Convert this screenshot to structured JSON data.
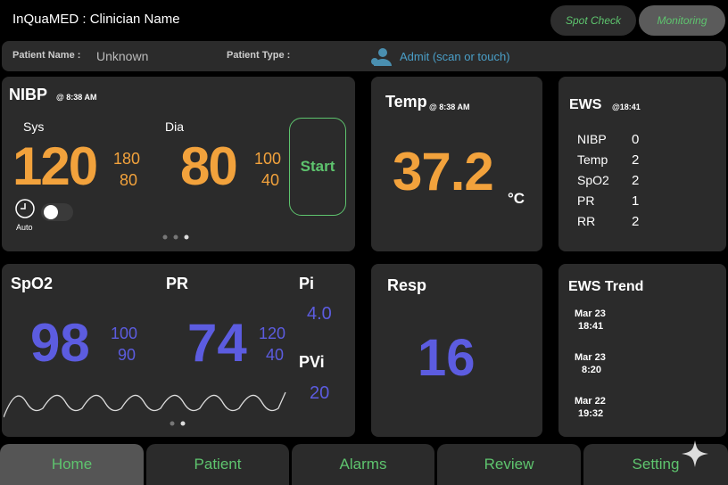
{
  "header": {
    "app": "InQuaMED : Clinician Name",
    "modes": [
      "Spot Check",
      "Monitoring"
    ]
  },
  "patient_bar": {
    "name_label": "Patient Name :",
    "name": "Unknown",
    "type_label": "Patient Type :",
    "admit": "Admit (scan or touch)"
  },
  "nibp": {
    "title": "NIBP",
    "time": "@ 8:38 AM",
    "sys_label": "Sys",
    "sys": "120",
    "sys_high": "180",
    "sys_low": "80",
    "dia_label": "Dia",
    "dia": "80",
    "dia_high": "100",
    "dia_low": "40",
    "start": "Start",
    "auto": "Auto"
  },
  "temp": {
    "title": "Temp",
    "time": "@ 8:38 AM",
    "value": "37.2",
    "unit": "°C"
  },
  "ews": {
    "title": "EWS",
    "time": "@18:41",
    "rows": [
      [
        "NIBP",
        "0"
      ],
      [
        "Temp",
        "2"
      ],
      [
        "SpO2",
        "2"
      ],
      [
        "PR",
        "1"
      ],
      [
        "RR",
        "2"
      ]
    ]
  },
  "spo2": {
    "title": "SpO2",
    "value": "98",
    "high": "100",
    "low": "90",
    "pr_title": "PR",
    "pr": "74",
    "pr_high": "120",
    "pr_low": "40",
    "pi_title": "Pi",
    "pi": "4.0",
    "pvi_title": "PVi",
    "pvi": "20"
  },
  "resp": {
    "title": "Resp",
    "value": "16"
  },
  "ews_trend": {
    "title": "EWS Trend",
    "entries": [
      [
        "Mar 23",
        "18:41"
      ],
      [
        "Mar 23",
        "8:20"
      ],
      [
        "Mar 22",
        "19:32"
      ]
    ]
  },
  "nav": [
    "Home",
    "Patient",
    "Alarms",
    "Review",
    "Setting"
  ]
}
